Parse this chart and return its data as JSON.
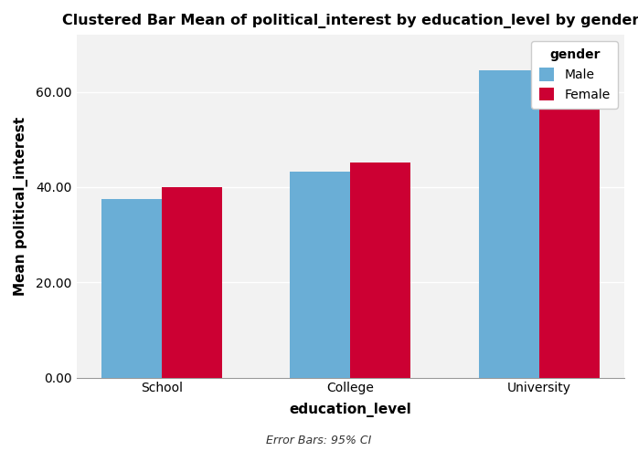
{
  "title": "Clustered Bar Mean of political_interest by education_level by gender",
  "xlabel": "education_level",
  "ylabel": "Mean political_interest",
  "categories": [
    "School",
    "College",
    "University"
  ],
  "series": {
    "Male": [
      37.5,
      43.3,
      64.5
    ],
    "Female": [
      40.0,
      45.2,
      58.5
    ]
  },
  "colors": {
    "Male": "#6aaed6",
    "Female": "#cc0033"
  },
  "legend_title": "gender",
  "ylim": [
    0,
    72
  ],
  "yticks": [
    0.0,
    20.0,
    40.0,
    60.0
  ],
  "bar_width": 0.32,
  "background_color": "#ffffff",
  "plot_background_color": "#f2f2f2",
  "grid_color": "#ffffff",
  "title_fontsize": 11.5,
  "axis_label_fontsize": 11,
  "tick_fontsize": 10,
  "legend_fontsize": 10,
  "footer_text": "Error Bars: 95% CI",
  "footer_fontsize": 9,
  "legend_box_color": "#ffffff",
  "legend_edge_color": "#cccccc"
}
